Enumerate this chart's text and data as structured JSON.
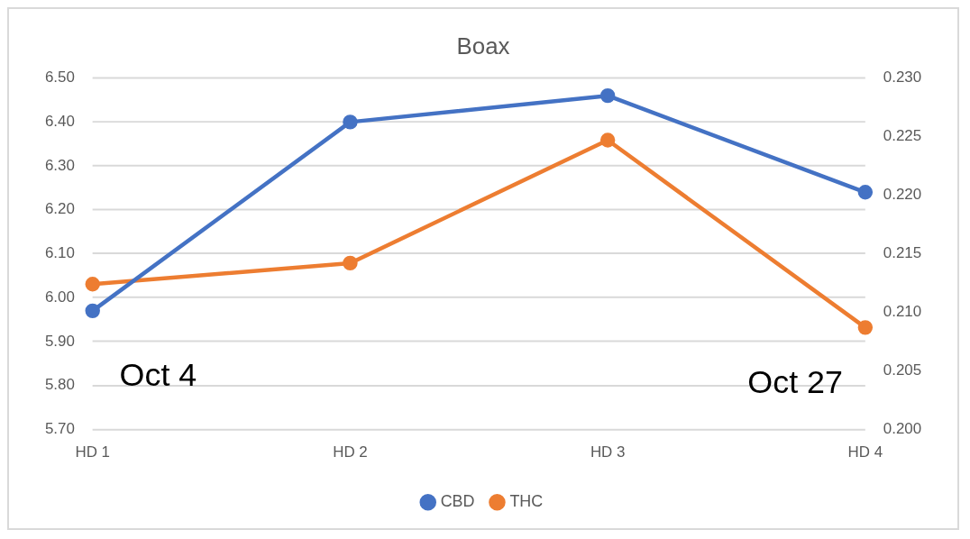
{
  "chart_data": {
    "type": "line",
    "title": "Boax",
    "categories": [
      "HD 1",
      "HD 2",
      "HD 3",
      "HD 4"
    ],
    "series": [
      {
        "name": "CBD",
        "color": "#4472c4",
        "values": [
          5.97,
          6.4,
          6.46,
          6.24
        ]
      },
      {
        "name": "THC",
        "color": "#ed7d31",
        "axis": "y2",
        "values": [
          0.2124,
          0.2142,
          0.2247,
          0.2087
        ]
      }
    ],
    "ylim": [
      5.7,
      6.5
    ],
    "yticks": [
      {
        "value": 5.7,
        "label": "5.70"
      },
      {
        "value": 5.8,
        "label": "5.80"
      },
      {
        "value": 5.9,
        "label": "5.90"
      },
      {
        "value": 6.0,
        "label": "6.00"
      },
      {
        "value": 6.1,
        "label": "6.10"
      },
      {
        "value": 6.2,
        "label": "6.20"
      },
      {
        "value": 6.3,
        "label": "6.30"
      },
      {
        "value": 6.4,
        "label": "6.40"
      },
      {
        "value": 6.5,
        "label": "6.50"
      }
    ],
    "y2lim": [
      0.2,
      0.23
    ],
    "y2ticks": [
      {
        "value": 0.2,
        "label": "0.200"
      },
      {
        "value": 0.205,
        "label": "0.205"
      },
      {
        "value": 0.21,
        "label": "0.210"
      },
      {
        "value": 0.215,
        "label": "0.215"
      },
      {
        "value": 0.22,
        "label": "0.220"
      },
      {
        "value": 0.225,
        "label": "0.225"
      },
      {
        "value": 0.23,
        "label": "0.230"
      }
    ],
    "annotations": [
      "Oct 4",
      "Oct 27"
    ],
    "grid": "y",
    "legend": "bottom",
    "marker": "circle",
    "line_style": "solid"
  }
}
